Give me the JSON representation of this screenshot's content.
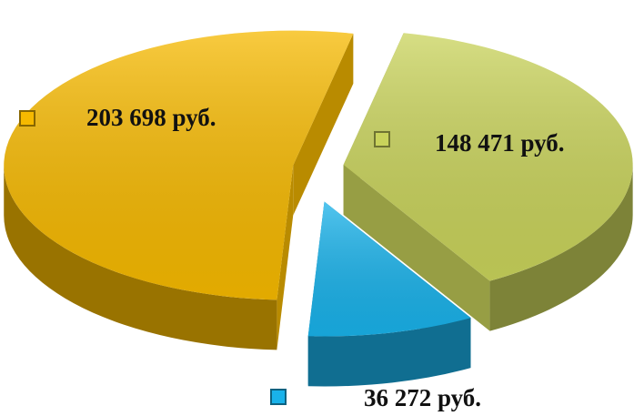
{
  "chart_data": {
    "type": "pie",
    "values": [
      148471,
      36272,
      203698
    ],
    "value_labels": [
      "148 471 руб.",
      "36 272 руб.",
      "203 698 руб."
    ],
    "colors": [
      "#c9d35b",
      "#19b2ea",
      "#f6b900"
    ]
  }
}
